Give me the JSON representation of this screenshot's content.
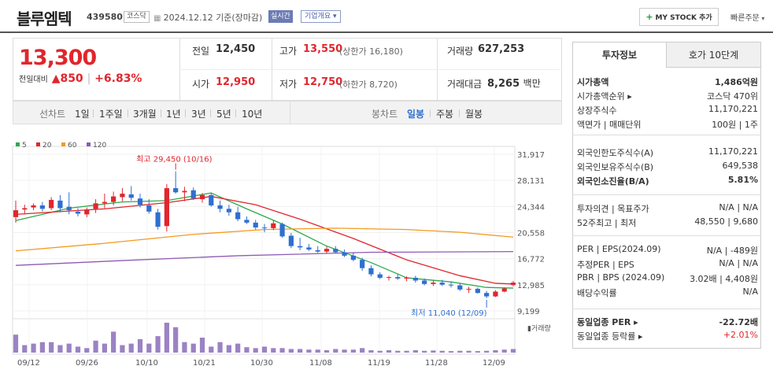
{
  "header": {
    "name": "블루엠텍",
    "code": "439580",
    "market": "코스닥",
    "date": "2024.12.12 기준(장마감)",
    "realtime": "실시간",
    "company_info": "기업개요 ▾",
    "mystock": "MY STOCK 추가",
    "quick_order": "빠른주문"
  },
  "price": {
    "current": "13,300",
    "change_label": "전일대비",
    "change": "▲850",
    "change_pct": "+6.83%"
  },
  "quote": {
    "prev_label": "전일",
    "prev": "12,450",
    "open_label": "시가",
    "open": "12,950",
    "high_label": "고가",
    "high": "13,550",
    "upper_label": "(상한가 16,180)",
    "low_label": "저가",
    "low": "12,750",
    "lower_label": "(하한가 8,720)",
    "vol_label": "거래량",
    "vol": "627,253",
    "amt_label": "거래대금",
    "amt": "8,265",
    "amt_unit": "백만"
  },
  "line_tabs": {
    "label": "선차트",
    "items": [
      "1일",
      "1주일",
      "3개월",
      "1년",
      "3년",
      "5년",
      "10년"
    ]
  },
  "candle_tabs": {
    "label": "봉차트",
    "items": [
      "일봉",
      "주봉",
      "월봉"
    ],
    "selected": "일봉"
  },
  "chart_data": {
    "type": "candlestick",
    "legend": [
      {
        "name": "5",
        "color": "#2fa84f"
      },
      {
        "name": "20",
        "color": "#e0262d"
      },
      {
        "name": "60",
        "color": "#f39a1e"
      },
      {
        "name": "120",
        "color": "#8e5ab5"
      }
    ],
    "y_ticks": [
      "31,917",
      "28,131",
      "24,344",
      "20,558",
      "16,772",
      "12,985",
      "9,199"
    ],
    "ylim": [
      9199,
      31917
    ],
    "x_labels": [
      "09/12",
      "09/26",
      "10/10",
      "10/21",
      "10/30",
      "11/08",
      "11/19",
      "11/28",
      "12/09"
    ],
    "max_label": "최고 29,450 (10/16)",
    "min_label": "최저 11,040 (12/09)",
    "volume_label": "거래량",
    "candles": [
      [
        22800,
        25200,
        22000,
        23800
      ],
      [
        23900,
        24600,
        23200,
        24100
      ],
      [
        24200,
        24800,
        23800,
        24500
      ],
      [
        24500,
        25000,
        23600,
        24000
      ],
      [
        24100,
        25700,
        23800,
        25300
      ],
      [
        25200,
        26000,
        23500,
        24100
      ],
      [
        24300,
        26400,
        23200,
        23800
      ],
      [
        23600,
        24100,
        22900,
        23300
      ],
      [
        23200,
        24200,
        22800,
        23900
      ],
      [
        24000,
        25400,
        23400,
        24800
      ],
      [
        24800,
        26200,
        24100,
        25000
      ],
      [
        25000,
        26500,
        24500,
        25800
      ],
      [
        25700,
        27000,
        25100,
        26200
      ],
      [
        26100,
        27300,
        25200,
        25600
      ],
      [
        25500,
        26200,
        24200,
        24600
      ],
      [
        24500,
        25400,
        23300,
        23600
      ],
      [
        23500,
        24000,
        21000,
        21400
      ],
      [
        21500,
        27600,
        20700,
        27000
      ],
      [
        27000,
        29450,
        26200,
        26400
      ],
      [
        26400,
        27200,
        25100,
        26600
      ],
      [
        26700,
        27100,
        25300,
        25500
      ],
      [
        25400,
        26300,
        24900,
        26000
      ],
      [
        26000,
        26300,
        24300,
        24500
      ],
      [
        24500,
        25200,
        23500,
        24000
      ],
      [
        24000,
        24600,
        23000,
        23500
      ],
      [
        23500,
        24300,
        22200,
        22500
      ],
      [
        22400,
        22900,
        21800,
        22000
      ],
      [
        22000,
        22400,
        21000,
        21300
      ],
      [
        21300,
        21800,
        20600,
        21200
      ],
      [
        21200,
        22300,
        20900,
        21900
      ],
      [
        21800,
        22000,
        19800,
        20000
      ],
      [
        20100,
        20500,
        18300,
        18600
      ],
      [
        18600,
        19800,
        18000,
        18400
      ],
      [
        18400,
        18900,
        17900,
        18100
      ],
      [
        18000,
        18600,
        17600,
        17800
      ],
      [
        17800,
        18500,
        17500,
        18200
      ],
      [
        18200,
        18600,
        17600,
        17700
      ],
      [
        17700,
        18100,
        17000,
        17200
      ],
      [
        17200,
        17700,
        16400,
        16600
      ],
      [
        16600,
        16900,
        15000,
        15400
      ],
      [
        15400,
        15800,
        14200,
        14500
      ],
      [
        14500,
        14800,
        13800,
        14000
      ],
      [
        14000,
        14300,
        13600,
        14100
      ],
      [
        14100,
        14500,
        13700,
        13900
      ],
      [
        13900,
        14200,
        13500,
        14000
      ],
      [
        14000,
        14300,
        13300,
        13600
      ],
      [
        13600,
        13900,
        12900,
        13100
      ],
      [
        13100,
        13600,
        12800,
        13300
      ],
      [
        13300,
        13700,
        12800,
        13000
      ],
      [
        13000,
        13400,
        12600,
        12900
      ],
      [
        12900,
        13200,
        12100,
        12300
      ],
      [
        12300,
        12700,
        11800,
        12400
      ],
      [
        12400,
        12600,
        11700,
        11800
      ],
      [
        11800,
        12100,
        11040,
        11300
      ],
      [
        11300,
        12200,
        11200,
        12000
      ],
      [
        12000,
        12600,
        11900,
        12450
      ],
      [
        12950,
        13550,
        12750,
        13300
      ]
    ],
    "ma_series": [
      {
        "name": "5",
        "color": "#2fa84f",
        "values": [
          [
            0,
            22300
          ],
          [
            6,
            24100
          ],
          [
            12,
            25000
          ],
          [
            17,
            25200
          ],
          [
            22,
            26300
          ],
          [
            26,
            24000
          ],
          [
            30,
            21800
          ],
          [
            35,
            18600
          ],
          [
            40,
            16200
          ],
          [
            44,
            14000
          ],
          [
            49,
            13400
          ],
          [
            53,
            12600
          ],
          [
            56,
            12500
          ]
        ]
      },
      {
        "name": "20",
        "color": "#e0262d",
        "values": [
          [
            0,
            23200
          ],
          [
            10,
            24000
          ],
          [
            17,
            24900
          ],
          [
            22,
            25800
          ],
          [
            27,
            24600
          ],
          [
            32,
            22500
          ],
          [
            38,
            19700
          ],
          [
            44,
            16600
          ],
          [
            50,
            14300
          ],
          [
            54,
            13200
          ],
          [
            56,
            13100
          ]
        ]
      },
      {
        "name": "60",
        "color": "#f39a1e",
        "values": [
          [
            0,
            17900
          ],
          [
            10,
            19000
          ],
          [
            20,
            20300
          ],
          [
            28,
            21000
          ],
          [
            36,
            21200
          ],
          [
            44,
            21000
          ],
          [
            50,
            20600
          ],
          [
            56,
            19900
          ]
        ]
      },
      {
        "name": "120",
        "color": "#8e5ab5",
        "values": [
          [
            0,
            15800
          ],
          [
            12,
            16500
          ],
          [
            25,
            17200
          ],
          [
            40,
            17700
          ],
          [
            56,
            17800
          ]
        ]
      }
    ],
    "volumes": [
      0.6,
      0.25,
      0.3,
      0.35,
      0.35,
      0.25,
      0.3,
      0.2,
      0.15,
      0.4,
      0.3,
      0.7,
      0.25,
      0.3,
      0.45,
      0.3,
      0.55,
      1.0,
      0.85,
      0.35,
      0.3,
      0.5,
      0.2,
      0.35,
      0.25,
      0.3,
      0.18,
      0.15,
      0.2,
      0.15,
      0.15,
      0.12,
      0.12,
      0.1,
      0.1,
      0.08,
      0.12,
      0.1,
      0.1,
      0.15,
      0.08,
      0.06,
      0.08,
      0.06,
      0.06,
      0.08,
      0.06,
      0.07,
      0.06,
      0.05,
      0.06,
      0.06,
      0.05,
      0.06,
      0.08,
      0.1,
      0.12
    ]
  },
  "right": {
    "tab_invest": "투자정보",
    "tab_quote": "호가 10단계",
    "rows1": [
      {
        "k": "시가총액",
        "v": "1,486억원",
        "b": true
      },
      {
        "k": "시가총액순위 ▸",
        "v": "코스닥 470위"
      },
      {
        "k": "상장주식수",
        "v": "11,170,221"
      },
      {
        "k": "액면가 | 매매단위",
        "v": "100원 | 1주"
      }
    ],
    "rows2": [
      {
        "k": "외국인한도주식수(A)",
        "v": "11,170,221"
      },
      {
        "k": "외국인보유주식수(B)",
        "v": "649,538"
      },
      {
        "k": "외국인소진율(B/A)",
        "v": "5.81%",
        "b": true
      }
    ],
    "rows3": [
      {
        "k": "투자의견 | 목표주가",
        "v": "N/A | N/A"
      },
      {
        "k": "52주최고 | 최저",
        "v": "48,550 | 9,680"
      }
    ],
    "rows4": [
      {
        "k": "PER | EPS(2024.09)",
        "v": "N/A | -489원"
      },
      {
        "k": "추정PER | EPS",
        "v": "N/A | N/A"
      },
      {
        "k": "PBR | BPS (2024.09)",
        "v": "3.02배 | 4,408원"
      },
      {
        "k": "배당수익률",
        "v": "N/A"
      }
    ],
    "rows5": [
      {
        "k": "동일업종 PER ▸",
        "v": "-22.72배",
        "b": true
      },
      {
        "k": "동일업종 등락률 ▸",
        "v": "+2.01%",
        "red": true
      }
    ]
  }
}
